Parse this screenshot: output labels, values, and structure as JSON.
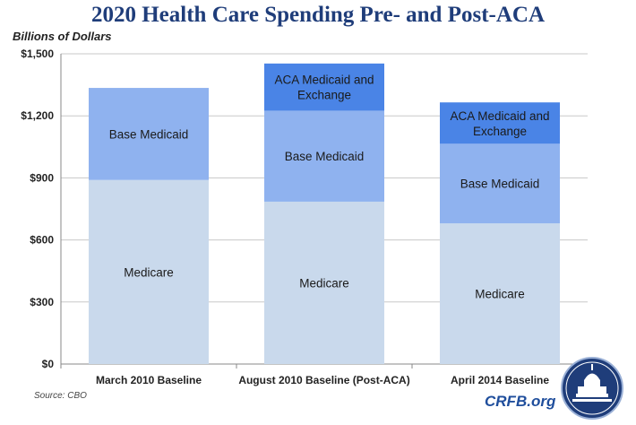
{
  "header": {
    "title": "2020 Health Care Spending Pre- and Post-ACA",
    "y_unit": "Billions of Dollars"
  },
  "footer": {
    "source": "Source: CBO",
    "brand": "CRFB.org"
  },
  "icons": {
    "seal": "capitol-seal-icon"
  },
  "colors": {
    "medicare": "#c9d9ec",
    "base_medicaid": "#8fb2ef",
    "aca": "#4a84e6",
    "title": "#1f3d7a",
    "brand": "#1f4e9c",
    "grid": "#c8c8c8"
  },
  "chart_data": {
    "type": "bar",
    "stacked": true,
    "title": "2020 Health Care Spending Pre- and Post-ACA",
    "ylabel": "Billions of Dollars",
    "xlabel": "",
    "ylim": [
      0,
      1500
    ],
    "yticks": [
      0,
      300,
      600,
      900,
      1200,
      1500
    ],
    "ytick_labels": [
      "$0",
      "$300",
      "$600",
      "$900",
      "$1,200",
      "$1,500"
    ],
    "grid": true,
    "legend": "none",
    "categories": [
      "March 2010 Baseline",
      "August 2010 Baseline (Post-ACA)",
      "April 2014 Baseline"
    ],
    "series": [
      {
        "name": "Medicare",
        "values": [
          890,
          785,
          680
        ]
      },
      {
        "name": "Base Medicaid",
        "values": [
          445,
          440,
          385
        ]
      },
      {
        "name": "ACA Medicaid and Exchange",
        "values": [
          0,
          228,
          200
        ]
      }
    ]
  }
}
